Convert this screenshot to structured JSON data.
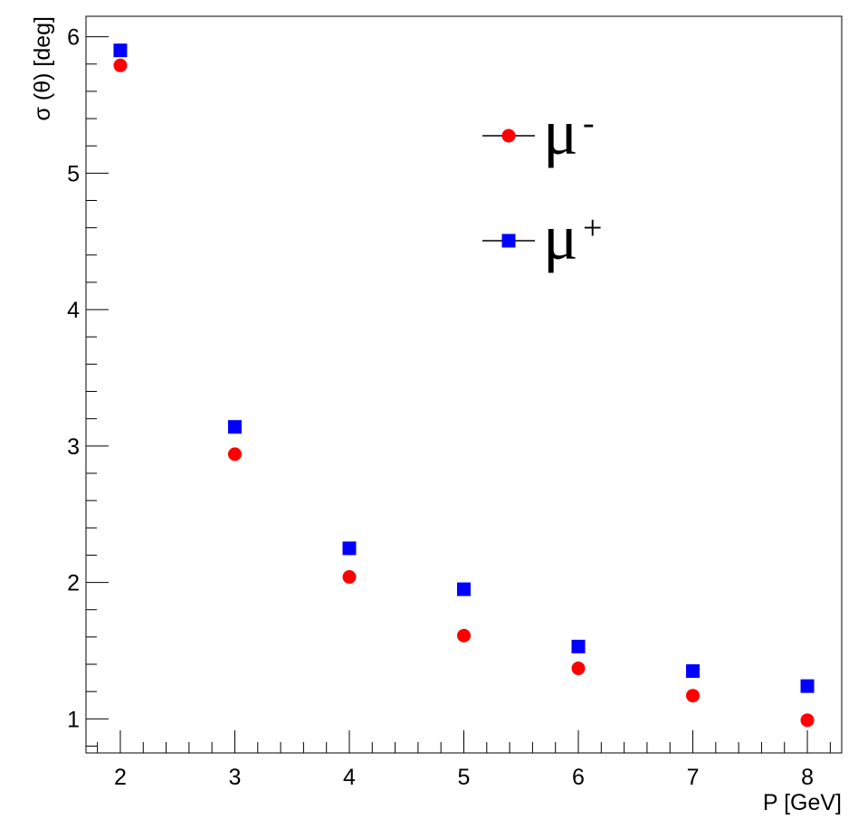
{
  "chart_data": {
    "type": "scatter",
    "xlabel": "P [GeV]",
    "ylabel": "σ (θ) [deg]",
    "xlim": [
      1.7,
      8.3
    ],
    "ylim": [
      0.75,
      6.15
    ],
    "xticks": [
      "2",
      "3",
      "4",
      "5",
      "6",
      "7",
      "8"
    ],
    "yticks": [
      "1",
      "2",
      "3",
      "4",
      "5",
      "6"
    ],
    "grid": false,
    "legend_position": "top-center",
    "series": [
      {
        "name": "μ-",
        "label_base": "μ",
        "label_sup": "-",
        "marker": "circle",
        "color": "#ff0000",
        "x": [
          2,
          3,
          4,
          5,
          6,
          7,
          8
        ],
        "y": [
          5.79,
          2.94,
          2.04,
          1.61,
          1.37,
          1.17,
          0.99
        ]
      },
      {
        "name": "μ+",
        "label_base": "μ",
        "label_sup": "+",
        "marker": "square",
        "color": "#0000ff",
        "x": [
          2,
          3,
          4,
          5,
          6,
          7,
          8
        ],
        "y": [
          5.9,
          3.14,
          2.25,
          1.95,
          1.53,
          1.35,
          1.24
        ]
      }
    ]
  }
}
